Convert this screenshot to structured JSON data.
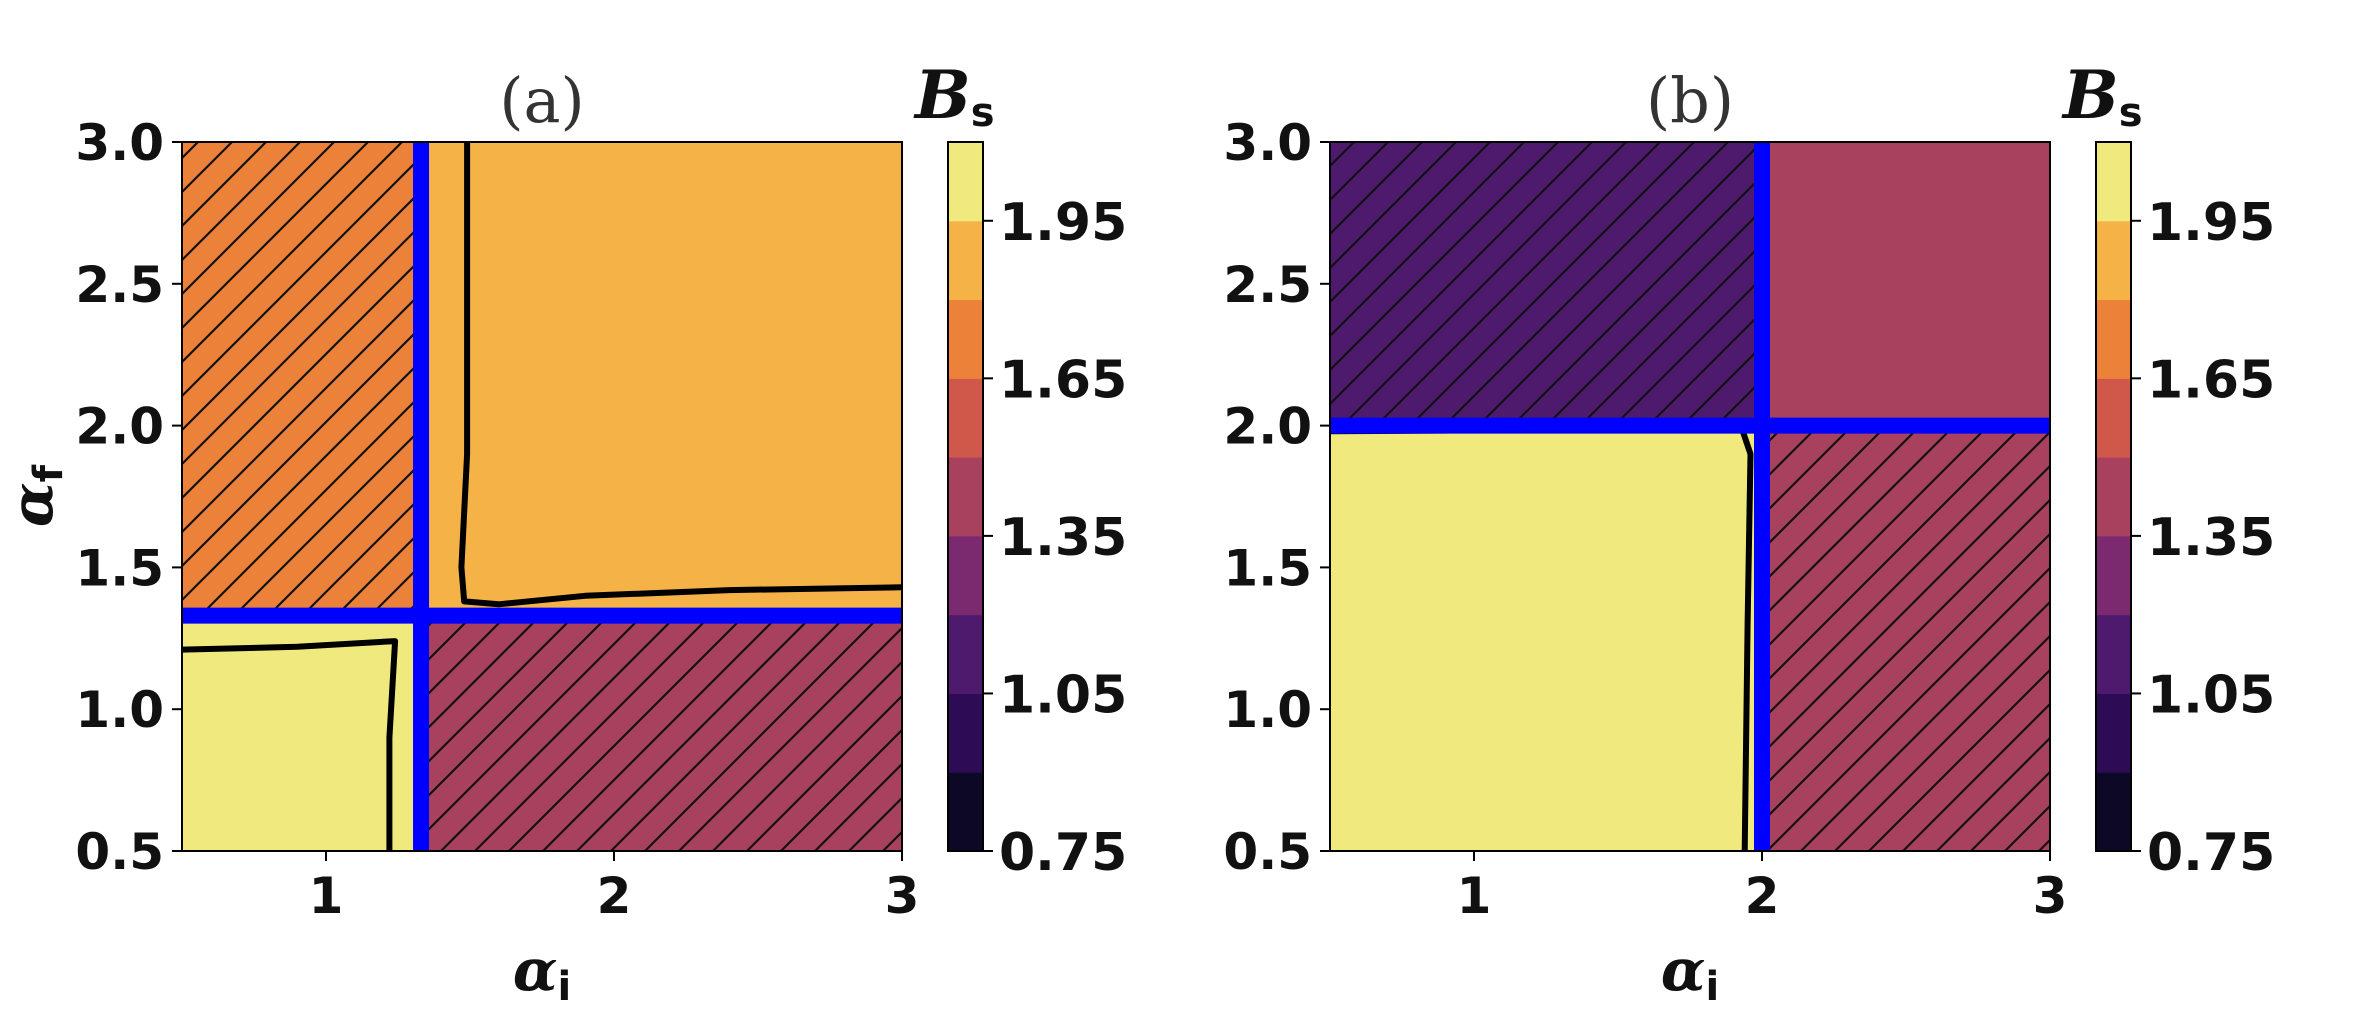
{
  "chart_data": [
    {
      "type": "heatmap",
      "title": "(a)",
      "xlabel": "α",
      "xlabel_sub": "i",
      "ylabel": "α",
      "ylabel_sub": "f",
      "xlim": [
        0.5,
        3.0
      ],
      "ylim": [
        0.5,
        3.0
      ],
      "xticks": [
        1,
        2,
        3
      ],
      "yticks": [
        0.5,
        1.0,
        1.5,
        2.0,
        2.5,
        3.0
      ],
      "critical_lines": {
        "x": 1.33,
        "y": 1.33,
        "color": "#0000ff"
      },
      "regions": [
        {
          "name": "top-left-hatched",
          "x": [
            0.5,
            1.33
          ],
          "y": [
            1.33,
            3.0
          ],
          "value": 1.7,
          "hatched": true
        },
        {
          "name": "top-right",
          "x": [
            1.33,
            3.0
          ],
          "y": [
            1.33,
            3.0
          ],
          "value": 1.9,
          "hatched": false
        },
        {
          "name": "bottom-left",
          "x": [
            0.5,
            1.33
          ],
          "y": [
            0.5,
            1.33
          ],
          "value": 2.05,
          "hatched": false
        },
        {
          "name": "bottom-right-hatched",
          "x": [
            1.33,
            3.0
          ],
          "y": [
            0.5,
            1.33
          ],
          "value": 1.4,
          "hatched": true
        }
      ],
      "contours": [
        [
          [
            1.49,
            3.0
          ],
          [
            1.49,
            1.9
          ],
          [
            1.47,
            1.5
          ],
          [
            1.48,
            1.38
          ],
          [
            1.6,
            1.37
          ],
          [
            1.9,
            1.4
          ],
          [
            2.4,
            1.42
          ],
          [
            3.0,
            1.43
          ]
        ],
        [
          [
            0.5,
            1.21
          ],
          [
            0.9,
            1.22
          ],
          [
            1.24,
            1.24
          ],
          [
            1.22,
            0.9
          ],
          [
            1.22,
            0.5
          ]
        ]
      ],
      "colorbar": {
        "label": "B",
        "label_sub": "s",
        "ticks": [
          "0.75",
          "1.05",
          "1.35",
          "1.65",
          "1.95"
        ],
        "levels": [
          0.75,
          0.9,
          1.05,
          1.2,
          1.35,
          1.5,
          1.65,
          1.8,
          1.95,
          2.1
        ],
        "colors": [
          "#0c0826",
          "#2e0c55",
          "#4e1a6e",
          "#7b2a6f",
          "#a8415e",
          "#d0584a",
          "#ec8239",
          "#f5b246",
          "#f0ea7e"
        ]
      }
    },
    {
      "type": "heatmap",
      "title": "(b)",
      "xlabel": "α",
      "xlabel_sub": "i",
      "ylabel": "",
      "ylabel_sub": "",
      "xlim": [
        0.5,
        3.0
      ],
      "ylim": [
        0.5,
        3.0
      ],
      "xticks": [
        1,
        2,
        3
      ],
      "yticks": [
        0.5,
        1.0,
        1.5,
        2.0,
        2.5,
        3.0
      ],
      "critical_lines": {
        "x": 2.0,
        "y": 2.0,
        "color": "#0000ff"
      },
      "regions": [
        {
          "name": "top-left-hatched",
          "x": [
            0.5,
            2.0
          ],
          "y": [
            2.0,
            3.0
          ],
          "value": 1.1,
          "hatched": true
        },
        {
          "name": "top-right",
          "x": [
            2.0,
            3.0
          ],
          "y": [
            2.0,
            3.0
          ],
          "value": 1.4,
          "hatched": false
        },
        {
          "name": "bottom-left",
          "x": [
            0.5,
            2.0
          ],
          "y": [
            0.5,
            2.0
          ],
          "value": 2.05,
          "hatched": false
        },
        {
          "name": "bottom-right-hatched",
          "x": [
            2.0,
            3.0
          ],
          "y": [
            0.5,
            2.0
          ],
          "value": 1.45,
          "hatched": true
        }
      ],
      "contours": [
        [
          [
            0.5,
            1.98
          ],
          [
            1.2,
            1.985
          ],
          [
            1.93,
            1.99
          ],
          [
            1.96,
            1.9
          ],
          [
            1.95,
            1.3
          ],
          [
            1.94,
            0.5
          ]
        ]
      ],
      "colorbar": {
        "label": "B",
        "label_sub": "s",
        "ticks": [
          "0.75",
          "1.05",
          "1.35",
          "1.65",
          "1.95"
        ],
        "levels": [
          0.75,
          0.9,
          1.05,
          1.2,
          1.35,
          1.5,
          1.65,
          1.8,
          1.95,
          2.1
        ],
        "colors": [
          "#0c0826",
          "#2e0c55",
          "#4e1a6e",
          "#7b2a6f",
          "#a8415e",
          "#d0584a",
          "#ec8239",
          "#f5b246",
          "#f0ea7e"
        ]
      }
    }
  ]
}
